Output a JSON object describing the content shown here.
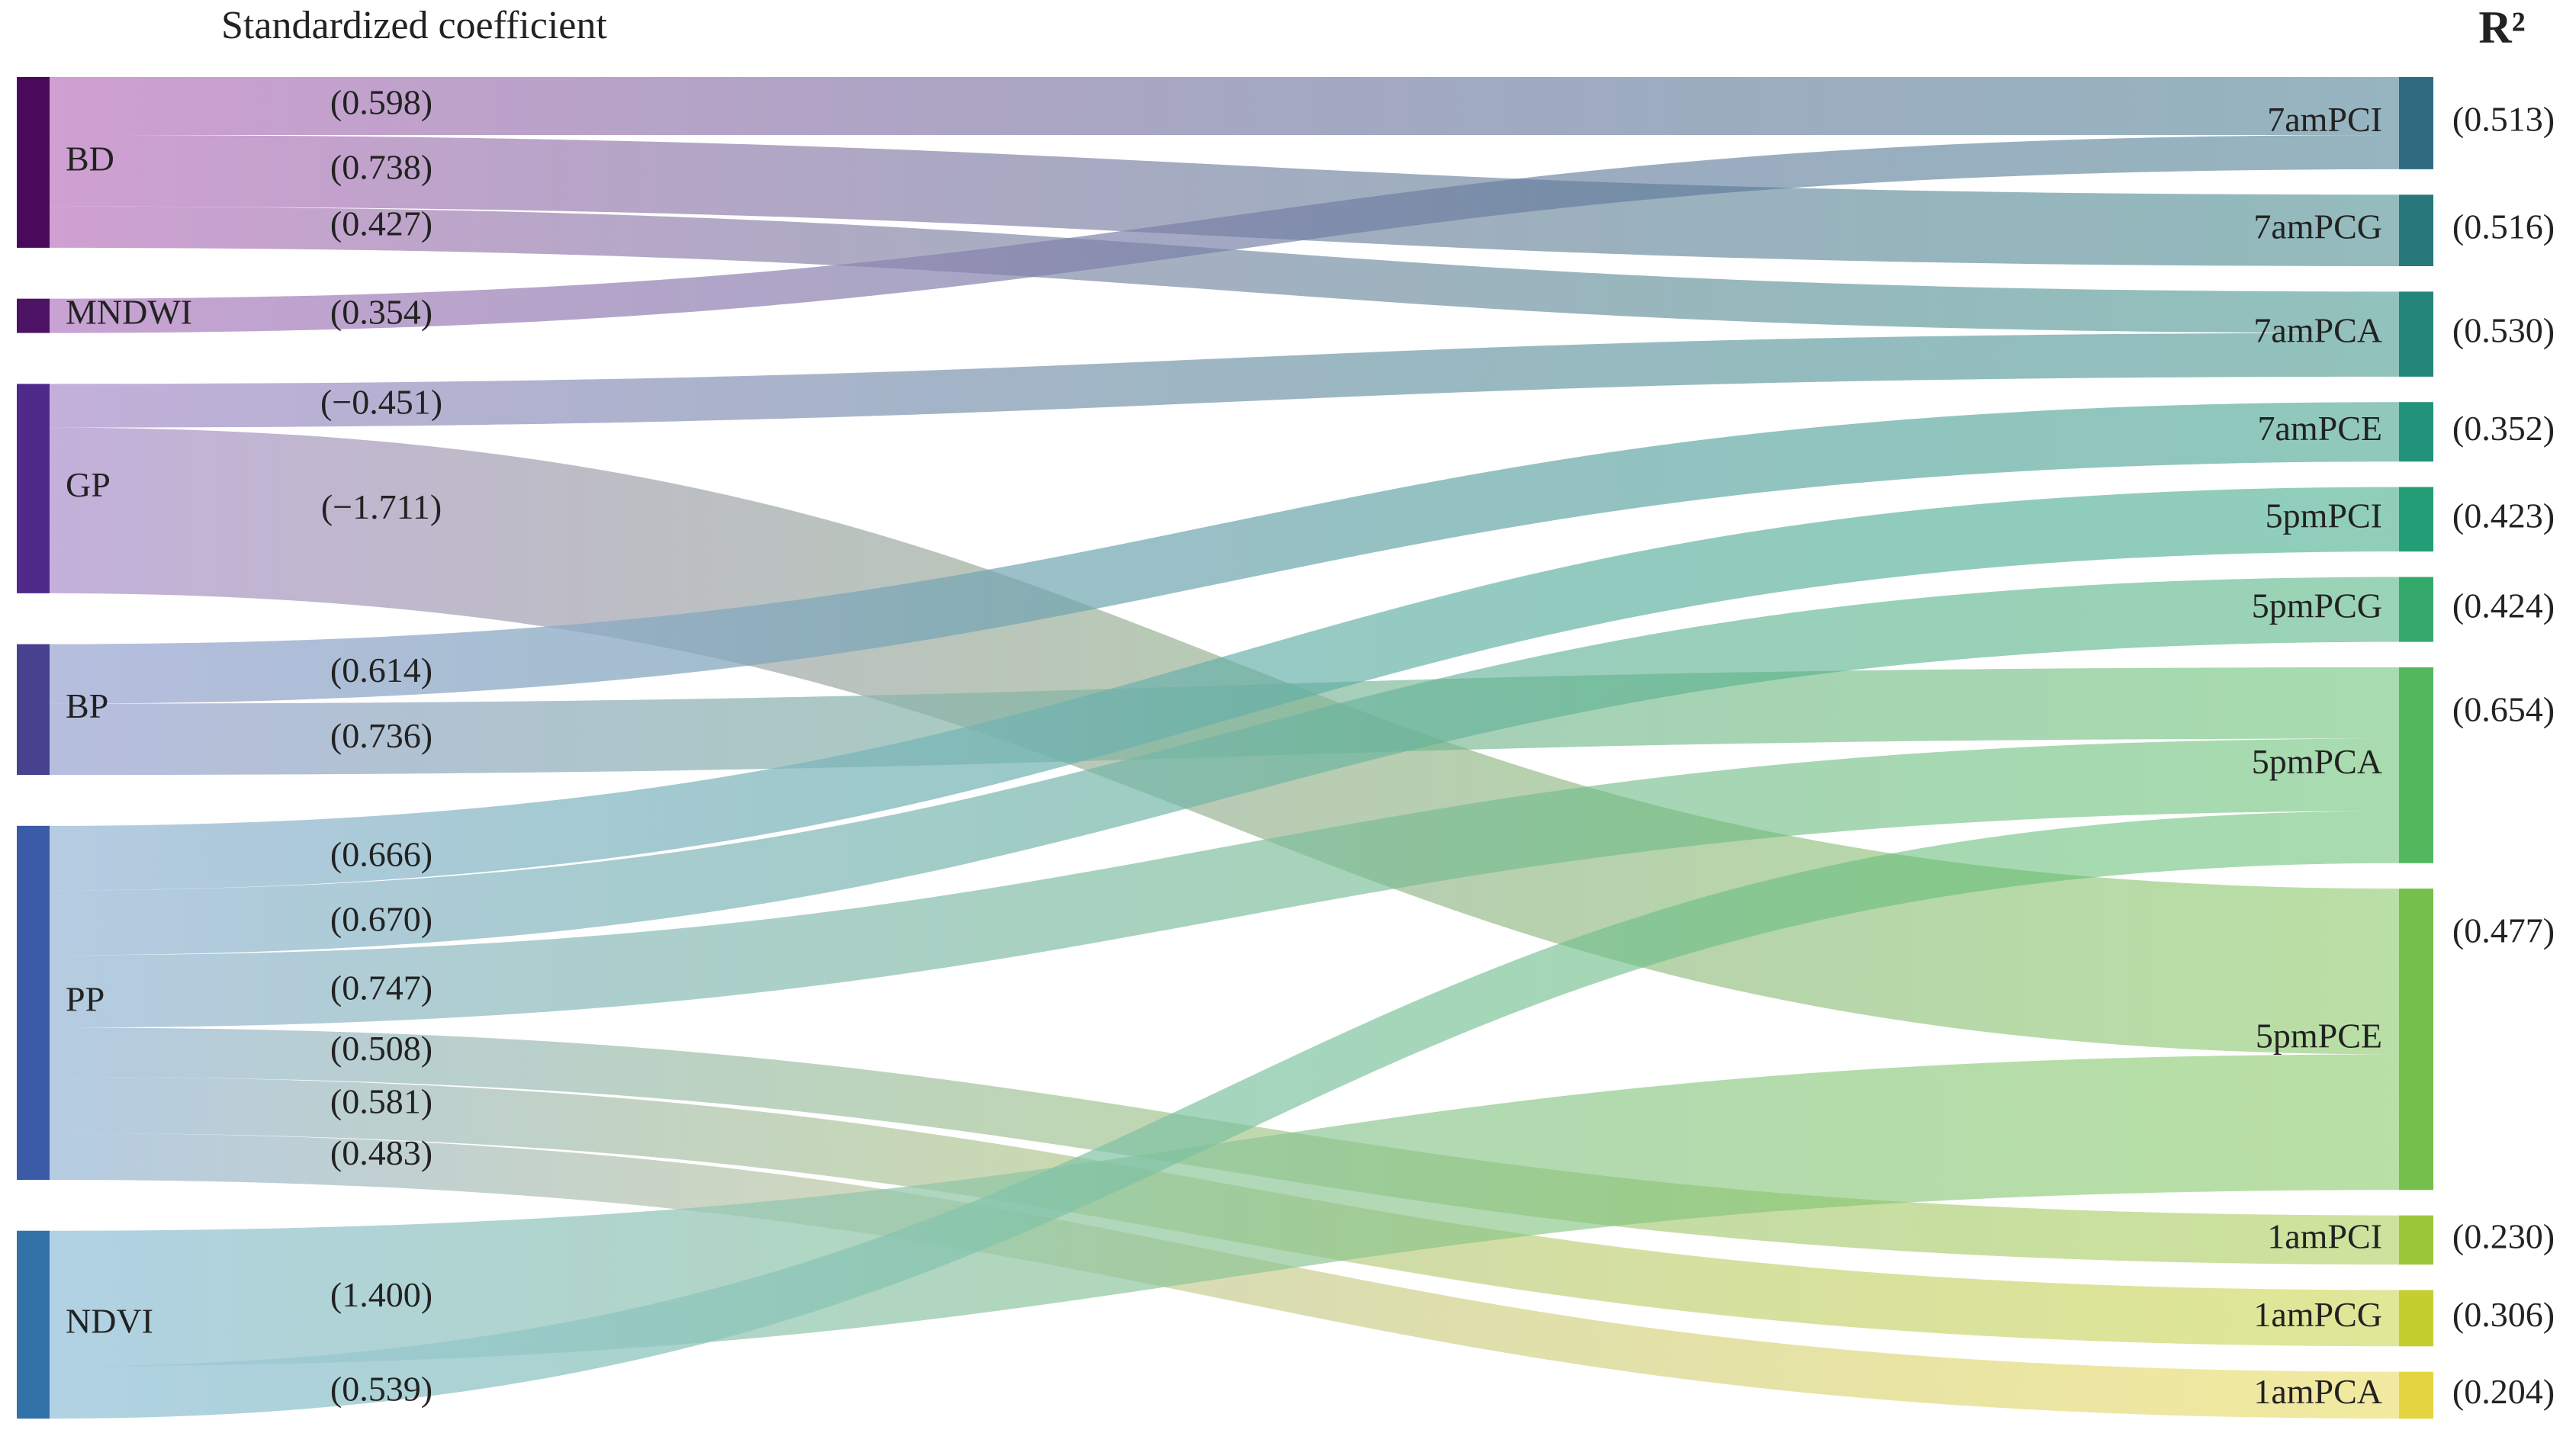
{
  "chart_data": {
    "type": "sankey",
    "title": "Standardized coefficient",
    "r2_title": "R²",
    "sources": [
      {
        "name": "BD",
        "color": "#4a0a5c",
        "link_color": "#c78fc9"
      },
      {
        "name": "MNDWI",
        "color": "#4d1465",
        "link_color": "#bf92cb"
      },
      {
        "name": "GP",
        "color": "#4f2a8a",
        "link_color": "#b9a2d4"
      },
      {
        "name": "BP",
        "color": "#48418f",
        "link_color": "#aab2d9"
      },
      {
        "name": "PP",
        "color": "#3b5ba8",
        "link_color": "#a8c2dc"
      },
      {
        "name": "NDVI",
        "color": "#3372a8",
        "link_color": "#a3cadf"
      }
    ],
    "targets": [
      {
        "name": "7amPCI",
        "color": "#2e6b80",
        "r2": 0.513,
        "r2_label": "(0.513)"
      },
      {
        "name": "7amPCG",
        "color": "#28787c",
        "r2": 0.516,
        "r2_label": "(0.516)"
      },
      {
        "name": "7amPCA",
        "color": "#24857a",
        "r2": 0.53,
        "r2_label": "(0.530)"
      },
      {
        "name": "7amPCE",
        "color": "#22927a",
        "r2": 0.352,
        "r2_label": "(0.352)"
      },
      {
        "name": "5pmPCI",
        "color": "#239d76",
        "r2": 0.423,
        "r2_label": "(0.423)"
      },
      {
        "name": "5pmPCG",
        "color": "#35a86c",
        "r2": 0.424,
        "r2_label": "(0.424)"
      },
      {
        "name": "5pmPCA",
        "color": "#52b85e",
        "r2": 0.654,
        "r2_label": "(0.654)"
      },
      {
        "name": "5pmPCE",
        "color": "#73c04c",
        "r2": 0.477,
        "r2_label": "(0.477)"
      },
      {
        "name": "1amPCI",
        "color": "#9cc63a",
        "r2": 0.23,
        "r2_label": "(0.230)"
      },
      {
        "name": "1amPCG",
        "color": "#c2cf2e",
        "r2": 0.306,
        "r2_label": "(0.306)"
      },
      {
        "name": "1amPCA",
        "color": "#e4d440",
        "r2": 0.204,
        "r2_label": "(0.204)"
      }
    ],
    "links": [
      {
        "source": "BD",
        "target": "7amPCI",
        "value": 0.598,
        "value_label": "(0.598)"
      },
      {
        "source": "BD",
        "target": "7amPCG",
        "value": 0.738,
        "value_label": "(0.738)"
      },
      {
        "source": "BD",
        "target": "7amPCA",
        "value": 0.427,
        "value_label": "(0.427)"
      },
      {
        "source": "MNDWI",
        "target": "7amPCI",
        "value": 0.354,
        "value_label": "(0.354)"
      },
      {
        "source": "GP",
        "target": "7amPCA",
        "value": -0.451,
        "value_label": "(−0.451)"
      },
      {
        "source": "GP",
        "target": "5pmPCE",
        "value": -1.711,
        "value_label": "(−1.711)"
      },
      {
        "source": "BP",
        "target": "7amPCE",
        "value": 0.614,
        "value_label": "(0.614)"
      },
      {
        "source": "BP",
        "target": "5pmPCA",
        "value": 0.736,
        "value_label": "(0.736)"
      },
      {
        "source": "PP",
        "target": "5pmPCI",
        "value": 0.666,
        "value_label": "(0.666)"
      },
      {
        "source": "PP",
        "target": "5pmPCG",
        "value": 0.67,
        "value_label": "(0.670)"
      },
      {
        "source": "PP",
        "target": "5pmPCA",
        "value": 0.747,
        "value_label": "(0.747)"
      },
      {
        "source": "PP",
        "target": "1amPCI",
        "value": 0.508,
        "value_label": "(0.508)"
      },
      {
        "source": "PP",
        "target": "1amPCG",
        "value": 0.581,
        "value_label": "(0.581)"
      },
      {
        "source": "PP",
        "target": "1amPCA",
        "value": 0.483,
        "value_label": "(0.483)"
      },
      {
        "source": "NDVI",
        "target": "5pmPCE",
        "value": 1.4,
        "value_label": "(1.400)"
      },
      {
        "source": "NDVI",
        "target": "5pmPCA",
        "value": 0.539,
        "value_label": "(0.539)"
      }
    ]
  }
}
